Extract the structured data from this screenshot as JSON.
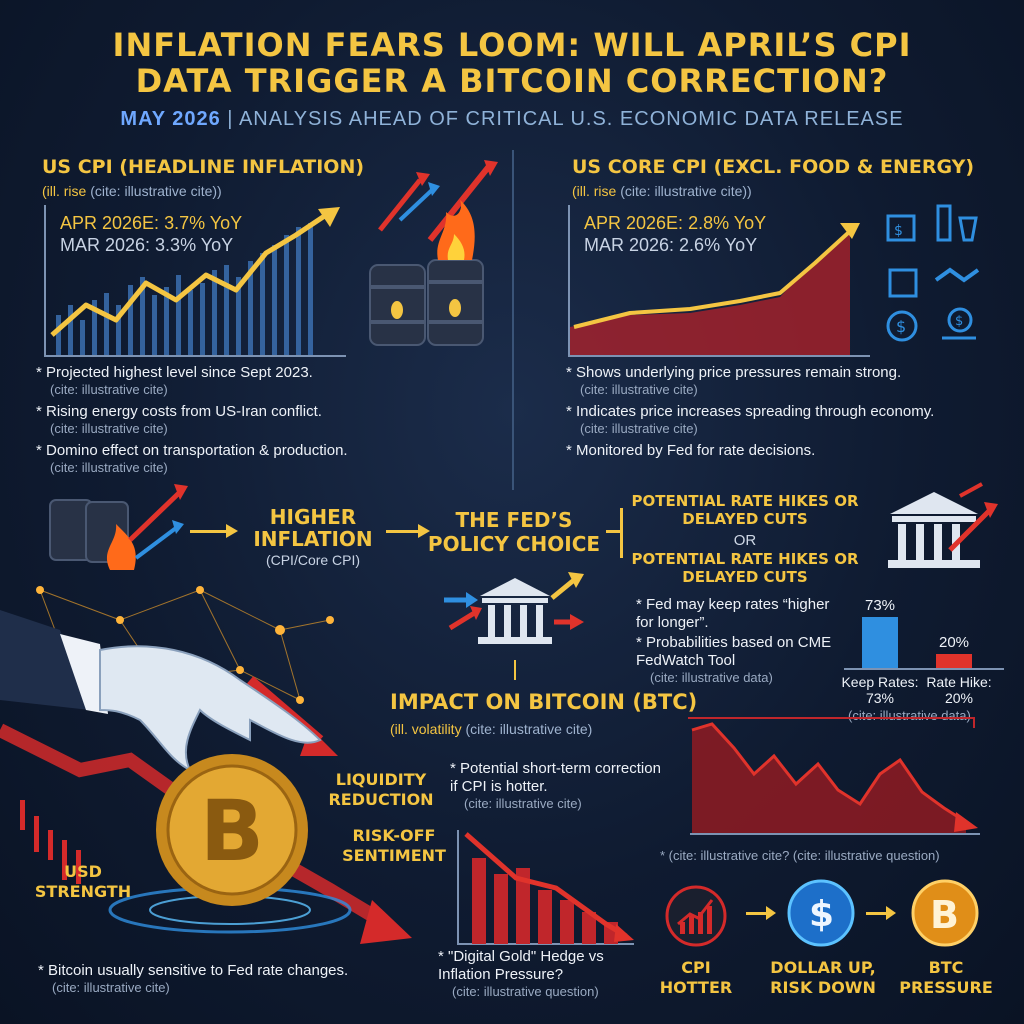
{
  "header": {
    "title_line1": "INFLATION FEARS LOOM: WILL APRIL’S CPI",
    "title_line2": "DATA TRIGGER A BITCOIN CORRECTION?",
    "subtitle_date": "MAY 2026",
    "subtitle_sep": " | ",
    "subtitle_rest": "ANALYSIS AHEAD OF CRITICAL U.S. ECONOMIC DATA RELEASE"
  },
  "cpi": {
    "heading": "US CPI (HEADLINE INFLATION)",
    "sub": "(ill. rise ",
    "sub_cite": "(cite: illustrative cite))",
    "apr": "APR 2026E: 3.7% YoY",
    "mar": "MAR 2026: 3.3% YoY",
    "bullets": [
      {
        "text": "* Projected highest level since Sept 2023.",
        "cite": "(cite: illustrative cite)"
      },
      {
        "text": "* Rising energy costs from US-Iran conflict.",
        "cite": "(cite: illustrative cite)"
      },
      {
        "text": "* Domino effect on transportation & production.",
        "cite": "(cite: illustrative cite)"
      }
    ]
  },
  "core": {
    "heading": "US CORE CPI (EXCL. FOOD & ENERGY)",
    "sub": "(ill. rise ",
    "sub_cite": "(cite: illustrative cite))",
    "apr": "APR 2026E: 2.8% YoY",
    "mar": "MAR 2026: 2.6% YoY",
    "bullets": [
      {
        "text": "* Shows underlying price pressures remain strong.",
        "cite": "(cite: illustrative cite)"
      },
      {
        "text": "* Indicates price increases spreading through economy.",
        "cite": "(cite: illustrative cite)"
      },
      {
        "text": "* Monitored by Fed for rate decisions.",
        "cite": ""
      }
    ]
  },
  "flow": {
    "higher_inflation": "HIGHER INFLATION",
    "higher_inflation_sub": "(CPI/Core CPI)",
    "fed_choice": "THE FED’S POLICY CHOICE",
    "rate_option_1": "POTENTIAL RATE HIKES OR DELAYED CUTS",
    "or": "OR",
    "rate_option_2": "POTENTIAL RATE HIKES OR DELAYED CUTS"
  },
  "fed": {
    "bullet1": "* Fed may keep rates “higher for longer”.",
    "bullet2": "* Probabilities based on CME FedWatch Tool",
    "cite": "(cite: illustrative data)"
  },
  "probability_chart": {
    "bars": [
      {
        "label": "Keep Rates: 73%",
        "value_label": "73%",
        "value": 73,
        "color": "#2f8fe0"
      },
      {
        "label": "Rate Hike: 20%",
        "value_label": "20%",
        "value": 20,
        "color": "#e0332b"
      }
    ],
    "cite": "(cite: illustrative data)"
  },
  "btc": {
    "heading": "IMPACT ON BITCOIN (BTC)",
    "sub": "(ill. volatility ",
    "sub_cite": "(cite: illustrative cite)",
    "liquidity": "LIQUIDITY REDUCTION",
    "risk_off": "RISK-OFF SENTIMENT",
    "usd": "USD STRENGTH",
    "correction": "* Potential short-term correction if CPI is hotter.",
    "correction_cite": "(cite: illustrative cite)",
    "hedge": "* \"Digital Gold\" Hedge vs Inflation Pressure?",
    "hedge_cite": "(cite: illustrative question)",
    "sensitive": "* Bitcoin usually sensitive to Fed rate changes.",
    "sensitive_cite": "(cite: illustrative cite)",
    "chart_cite": "* (cite: illustrative cite? (cite: illustrative question)"
  },
  "chain": {
    "cpi_hotter": "CPI HOTTER",
    "dollar_up": "DOLLAR UP, RISK DOWN",
    "btc_pressure": "BTC PRESSURE"
  },
  "icons": [
    "oil-barrel-icon",
    "fire-icon",
    "bank-icon",
    "bitcoin-coin-icon",
    "dollar-coin-icon",
    "handshake-icon",
    "grocery-icon"
  ]
}
